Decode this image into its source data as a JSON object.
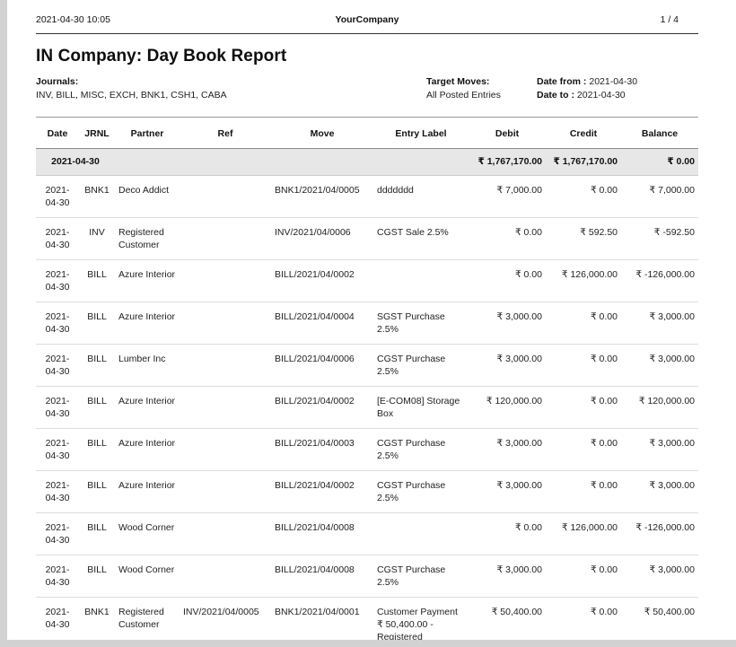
{
  "header": {
    "datetime": "2021-04-30 10:05",
    "company": "YourCompany",
    "pagination": "1  /  4"
  },
  "report": {
    "title": "IN Company: Day Book Report",
    "filters": {
      "journals_label": "Journals:",
      "journals_value": "INV, BILL, MISC, EXCH, BNK1, CSH1, CABA",
      "target_label": "Target Moves:",
      "target_value": "All Posted Entries",
      "date_from_label": "Date from :",
      "date_from_value": "2021-04-30",
      "date_to_label": "Date to :",
      "date_to_value": "2021-04-30"
    }
  },
  "table": {
    "columns": [
      "Date",
      "JRNL",
      "Partner",
      "Ref",
      "Move",
      "Entry Label",
      "Debit",
      "Credit",
      "Balance"
    ],
    "group": {
      "date": "2021-04-30",
      "debit": "₹ 1,767,170.00",
      "credit": "₹ 1,767,170.00",
      "balance": "₹ 0.00"
    },
    "rows": [
      {
        "date": "2021-04-30",
        "jrnl": "BNK1",
        "partner": "Deco Addict",
        "ref": "",
        "move": "BNK1/2021/04/0005",
        "label": "ddddddd",
        "debit": "₹ 7,000.00",
        "credit": "₹ 0.00",
        "balance": "₹ 7,000.00"
      },
      {
        "date": "2021-04-30",
        "jrnl": "INV",
        "partner": "Registered Customer",
        "ref": "",
        "move": "INV/2021/04/0006",
        "label": "CGST Sale 2.5%",
        "debit": "₹ 0.00",
        "credit": "₹ 592.50",
        "balance": "₹ -592.50"
      },
      {
        "date": "2021-04-30",
        "jrnl": "BILL",
        "partner": "Azure Interior",
        "ref": "",
        "move": "BILL/2021/04/0002",
        "label": "",
        "debit": "₹ 0.00",
        "credit": "₹ 126,000.00",
        "balance": "₹ -126,000.00"
      },
      {
        "date": "2021-04-30",
        "jrnl": "BILL",
        "partner": "Azure Interior",
        "ref": "",
        "move": "BILL/2021/04/0004",
        "label": "SGST Purchase 2.5%",
        "debit": "₹ 3,000.00",
        "credit": "₹ 0.00",
        "balance": "₹ 3,000.00"
      },
      {
        "date": "2021-04-30",
        "jrnl": "BILL",
        "partner": "Lumber Inc",
        "ref": "",
        "move": "BILL/2021/04/0006",
        "label": "CGST Purchase 2.5%",
        "debit": "₹ 3,000.00",
        "credit": "₹ 0.00",
        "balance": "₹ 3,000.00"
      },
      {
        "date": "2021-04-30",
        "jrnl": "BILL",
        "partner": "Azure Interior",
        "ref": "",
        "move": "BILL/2021/04/0002",
        "label": "[E-COM08] Storage Box",
        "debit": "₹ 120,000.00",
        "credit": "₹ 0.00",
        "balance": "₹ 120,000.00"
      },
      {
        "date": "2021-04-30",
        "jrnl": "BILL",
        "partner": "Azure Interior",
        "ref": "",
        "move": "BILL/2021/04/0003",
        "label": "CGST Purchase 2.5%",
        "debit": "₹ 3,000.00",
        "credit": "₹ 0.00",
        "balance": "₹ 3,000.00"
      },
      {
        "date": "2021-04-30",
        "jrnl": "BILL",
        "partner": "Azure Interior",
        "ref": "",
        "move": "BILL/2021/04/0002",
        "label": "CGST Purchase 2.5%",
        "debit": "₹ 3,000.00",
        "credit": "₹ 0.00",
        "balance": "₹ 3,000.00"
      },
      {
        "date": "2021-04-30",
        "jrnl": "BILL",
        "partner": "Wood Corner",
        "ref": "",
        "move": "BILL/2021/04/0008",
        "label": "",
        "debit": "₹ 0.00",
        "credit": "₹ 126,000.00",
        "balance": "₹ -126,000.00"
      },
      {
        "date": "2021-04-30",
        "jrnl": "BILL",
        "partner": "Wood Corner",
        "ref": "",
        "move": "BILL/2021/04/0008",
        "label": "CGST Purchase 2.5%",
        "debit": "₹ 3,000.00",
        "credit": "₹ 0.00",
        "balance": "₹ 3,000.00"
      },
      {
        "date": "2021-04-30",
        "jrnl": "BNK1",
        "partner": "Registered Customer",
        "ref": "INV/2021/04/0005",
        "move": "BNK1/2021/04/0001",
        "label": "Customer Payment ₹ 50,400.00 - Registered",
        "debit": "₹ 50,400.00",
        "credit": "₹ 0.00",
        "balance": "₹ 50,400.00"
      }
    ]
  }
}
